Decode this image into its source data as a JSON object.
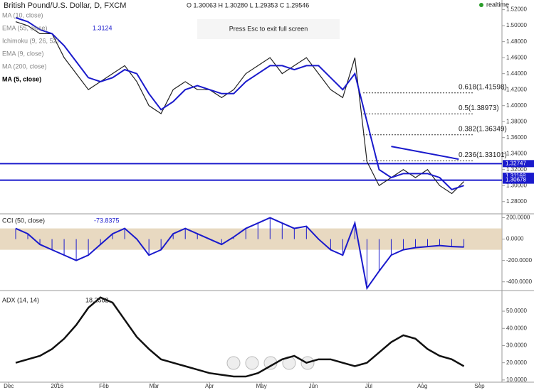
{
  "chart_data": {
    "type": "line",
    "title": "British Pound/U.S. Dollar, D, FXCM",
    "ohlc_text": "O 1.30063 H 1.30280 L 1.29353 C 1.29546",
    "status": "realtime",
    "overlay_text": "Press Esc to exit full screen",
    "indicator_labels": [
      "MA (10, close)",
      "EMA (55, close)",
      "Ichimoku (9, 26, 52)",
      "EMA (9, close)",
      "MA (200, close)",
      "MA (5, close)"
    ],
    "indicator_value": 1.3124,
    "xlim": [
      0,
      288
    ],
    "xticks": [
      {
        "value": 3,
        "label": "Dec"
      },
      {
        "value": 31,
        "label": "2016"
      },
      {
        "value": 58,
        "label": "Feb"
      },
      {
        "value": 87,
        "label": "Mar"
      },
      {
        "value": 119,
        "label": "Apr"
      },
      {
        "value": 149,
        "label": "May"
      },
      {
        "value": 179,
        "label": "Jun"
      },
      {
        "value": 211,
        "label": "Jul"
      },
      {
        "value": 242,
        "label": "Aug"
      },
      {
        "value": 275,
        "label": "Sep"
      }
    ],
    "x": [
      7,
      14,
      21,
      28,
      35,
      42,
      49,
      56,
      63,
      70,
      77,
      84,
      91,
      98,
      105,
      112,
      119,
      126,
      133,
      140,
      147,
      154,
      161,
      168,
      175,
      182,
      189,
      196,
      203,
      210,
      217,
      224,
      231,
      238,
      245,
      252,
      259,
      266
    ],
    "ylim": [
      1.27,
      1.525
    ],
    "yticks": [
      {
        "value": 1.28,
        "label": "1.28000"
      },
      {
        "value": 1.3,
        "label": "1.30000"
      },
      {
        "value": 1.32,
        "label": "1.32000"
      },
      {
        "value": 1.34,
        "label": "1.34000"
      },
      {
        "value": 1.36,
        "label": "1.36000"
      },
      {
        "value": 1.38,
        "label": "1.38000"
      },
      {
        "value": 1.4,
        "label": "1.40000"
      },
      {
        "value": 1.42,
        "label": "1.42000"
      },
      {
        "value": 1.44,
        "label": "1.44000"
      },
      {
        "value": 1.46,
        "label": "1.46000"
      },
      {
        "value": 1.48,
        "label": "1.48000"
      },
      {
        "value": 1.5,
        "label": "1.50000"
      },
      {
        "value": 1.52,
        "label": "1.52000"
      }
    ],
    "series": [
      {
        "name": "Price",
        "color": "#222222",
        "values": [
          1.505,
          1.5,
          1.49,
          1.49,
          1.46,
          1.44,
          1.42,
          1.43,
          1.44,
          1.45,
          1.43,
          1.4,
          1.39,
          1.42,
          1.43,
          1.42,
          1.42,
          1.41,
          1.42,
          1.44,
          1.45,
          1.46,
          1.44,
          1.45,
          1.46,
          1.44,
          1.42,
          1.41,
          1.46,
          1.33,
          1.3,
          1.31,
          1.32,
          1.31,
          1.32,
          1.3,
          1.29,
          1.305
        ]
      },
      {
        "name": "MA (5, close)",
        "color": "#1a1acc",
        "values": [
          1.51,
          1.505,
          1.495,
          1.49,
          1.475,
          1.455,
          1.435,
          1.43,
          1.435,
          1.445,
          1.44,
          1.415,
          1.395,
          1.405,
          1.42,
          1.425,
          1.42,
          1.415,
          1.415,
          1.43,
          1.44,
          1.45,
          1.45,
          1.445,
          1.45,
          1.45,
          1.435,
          1.42,
          1.44,
          1.38,
          1.32,
          1.31,
          1.315,
          1.315,
          1.315,
          1.31,
          1.295,
          1.3
        ]
      }
    ],
    "price_lines": [
      1.32747,
      1.30678
    ],
    "price_labels": [
      1.32747,
      1.31168,
      1.30678
    ],
    "fib_levels": [
      {
        "label": "0.618(1.41598)",
        "value": 1.41598
      },
      {
        "label": "0.5(1.38973)",
        "value": 1.38973
      },
      {
        "label": "0.382(1.36349)",
        "value": 1.36349
      },
      {
        "label": "0.236(1.33101)",
        "value": 1.33101
      }
    ],
    "trendline": {
      "x": [
        224,
        263
      ],
      "values": [
        1.349,
        1.333
      ]
    },
    "cci": {
      "name": "CCI (50, close)",
      "last": -73.8375,
      "ylim": [
        -475,
        230
      ],
      "yticks": [
        {
          "value": 200,
          "label": "200.0000"
        },
        {
          "value": 0,
          "label": "0.0000"
        },
        {
          "value": -200,
          "label": "-200.0000"
        },
        {
          "value": -400,
          "label": "-400.0000"
        }
      ],
      "bands": [
        -100,
        100
      ],
      "values": [
        100,
        50,
        -50,
        -100,
        -150,
        -200,
        -150,
        -50,
        50,
        100,
        0,
        -150,
        -100,
        50,
        100,
        50,
        0,
        -50,
        20,
        100,
        150,
        200,
        150,
        100,
        120,
        0,
        -100,
        -150,
        150,
        -460,
        -300,
        -150,
        -100,
        -80,
        -70,
        -60,
        -70,
        -74
      ]
    },
    "adx": {
      "name": "ADX (14, 14)",
      "last": 18.2582,
      "ylim": [
        8.7,
        61.6
      ],
      "yticks": [
        {
          "value": 10,
          "label": "10.0000"
        },
        {
          "value": 20,
          "label": "20.0000"
        },
        {
          "value": 30,
          "label": "30.0000"
        },
        {
          "value": 40,
          "label": "40.0000"
        },
        {
          "value": 50,
          "label": "50.0000"
        }
      ],
      "values": [
        20,
        22,
        24,
        28,
        34,
        42,
        52,
        58,
        55,
        45,
        35,
        28,
        22,
        20,
        18,
        16,
        14,
        13,
        12,
        12,
        14,
        18,
        22,
        24,
        20,
        22,
        22,
        20,
        18,
        20,
        26,
        32,
        36,
        34,
        28,
        24,
        22,
        18
      ]
    }
  }
}
